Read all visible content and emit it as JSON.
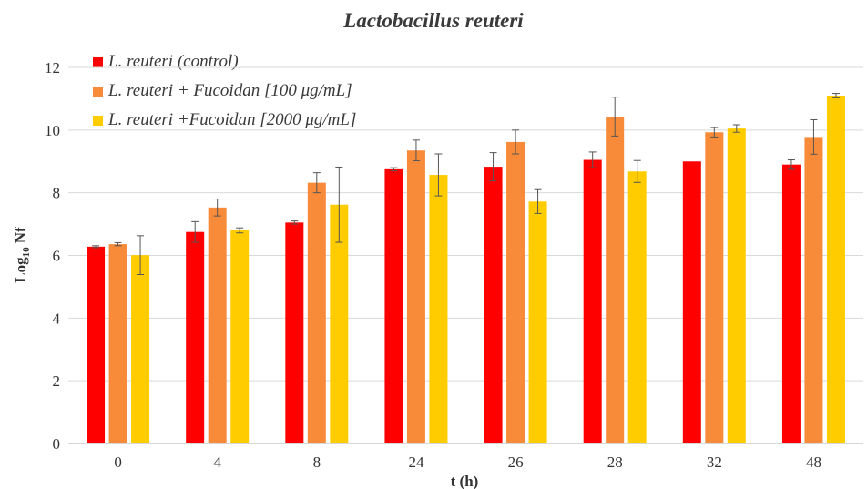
{
  "chart_data": {
    "type": "bar",
    "title": "Lactobacillus reuteri",
    "xlabel": "t (h)",
    "ylabel": "Log",
    "ylabel_sub": "10",
    "ylabel_suffix": " Nf",
    "categories": [
      "0",
      "4",
      "8",
      "24",
      "26",
      "28",
      "32",
      "48"
    ],
    "ylim": [
      0,
      12
    ],
    "yticks": [
      "0",
      "2",
      "4",
      "6",
      "8",
      "10",
      "12"
    ],
    "grid": true,
    "legend_position": "top-left",
    "series": [
      {
        "name": "L. reuteri (control)",
        "color": "#ff0000",
        "values": [
          6.28,
          6.75,
          7.05,
          8.75,
          8.83,
          9.05,
          9.0,
          8.9
        ],
        "errors": [
          0.03,
          0.33,
          0.05,
          0.05,
          0.45,
          0.25,
          0.0,
          0.15
        ]
      },
      {
        "name": "L. reuteri + Fucoidan [100 μg/mL]",
        "color": "#f88b3a",
        "values": [
          6.36,
          7.53,
          8.32,
          9.35,
          9.62,
          10.43,
          9.93,
          9.78
        ],
        "errors": [
          0.05,
          0.27,
          0.32,
          0.33,
          0.38,
          0.62,
          0.15,
          0.55
        ]
      },
      {
        "name": "L. reuteri +Fucoidan [2000 μg/mL]",
        "color": "#ffcc00",
        "values": [
          6.01,
          6.8,
          7.62,
          8.57,
          7.72,
          8.68,
          10.05,
          11.1
        ],
        "errors": [
          0.62,
          0.08,
          1.2,
          0.67,
          0.38,
          0.35,
          0.12,
          0.07
        ]
      }
    ]
  }
}
